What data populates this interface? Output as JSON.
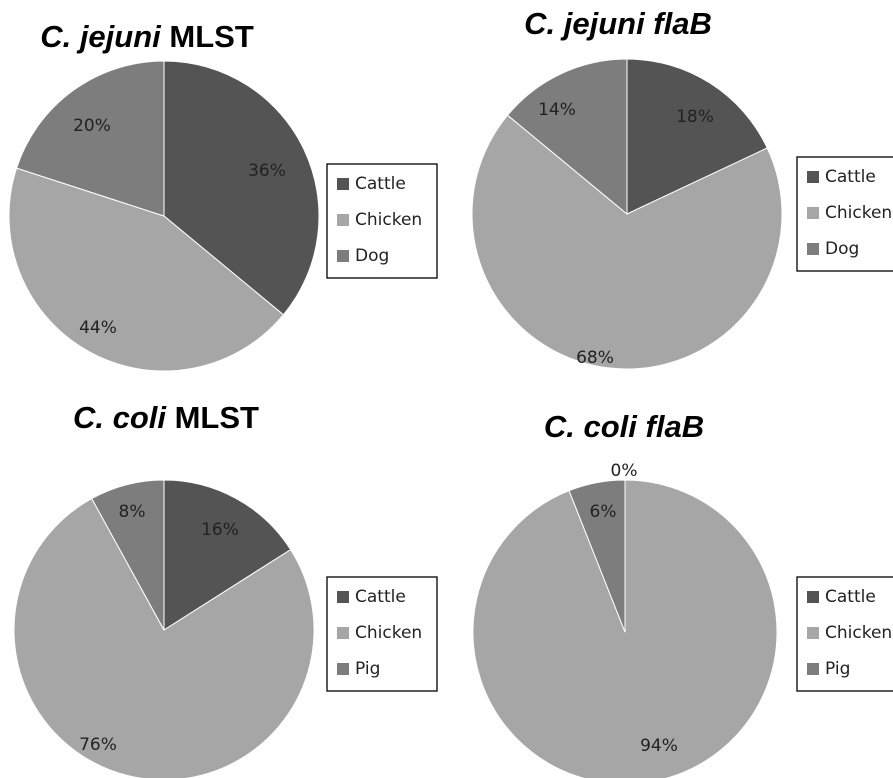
{
  "chart_data": [
    {
      "type": "pie",
      "title": {
        "italic": "C. jejuni",
        "normal": " MLST"
      },
      "categories": [
        "Cattle",
        "Chicken",
        "Dog"
      ],
      "values": [
        36,
        44,
        20
      ],
      "labels": [
        "36%",
        "44%",
        "20%"
      ],
      "legend": {
        "placement": "right",
        "entries": [
          "Cattle",
          "Chicken",
          "Dog"
        ]
      }
    },
    {
      "type": "pie",
      "title": {
        "italic": "C. jejuni flaB",
        "normal": ""
      },
      "categories": [
        "Cattle",
        "Chicken",
        "Dog"
      ],
      "values": [
        18,
        68,
        14
      ],
      "labels": [
        "18%",
        "68%",
        "14%"
      ],
      "legend": {
        "placement": "right",
        "entries": [
          "Cattle",
          "Chicken",
          "Dog"
        ]
      }
    },
    {
      "type": "pie",
      "title": {
        "italic": "C. coli",
        "normal": " MLST"
      },
      "categories": [
        "Cattle",
        "Chicken",
        "Pig"
      ],
      "values": [
        16,
        76,
        8
      ],
      "labels": [
        "16%",
        "76%",
        "8%"
      ],
      "legend": {
        "placement": "right",
        "entries": [
          "Cattle",
          "Chicken",
          "Pig"
        ]
      }
    },
    {
      "type": "pie",
      "title": {
        "italic": "C. coli flaB",
        "normal": ""
      },
      "categories": [
        "Cattle",
        "Chicken",
        "Pig"
      ],
      "values": [
        0,
        94,
        6
      ],
      "labels": [
        "0%",
        "94%",
        "6%"
      ],
      "legend": {
        "placement": "right",
        "entries": [
          "Cattle",
          "Chicken",
          "Pig"
        ]
      }
    }
  ],
  "colors": {
    "cattle": "#545454",
    "chicken": "#a6a6a6",
    "third": "#7d7d7d"
  }
}
